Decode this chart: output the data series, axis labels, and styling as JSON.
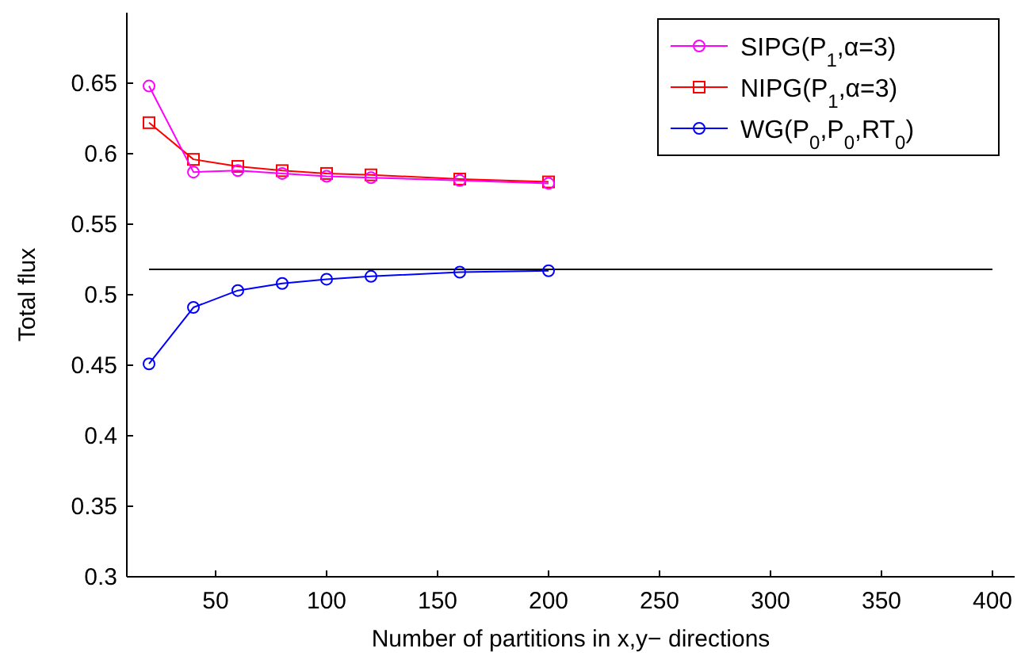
{
  "chart_data": {
    "type": "line",
    "xlabel": "Number of partitions in x,y− directions",
    "ylabel": "Total flux",
    "xlim": [
      10,
      410
    ],
    "ylim": [
      0.3,
      0.7
    ],
    "xticks": [
      50,
      100,
      150,
      200,
      250,
      300,
      350,
      400
    ],
    "yticks": [
      0.3,
      0.35,
      0.4,
      0.45,
      0.5,
      0.55,
      0.6,
      0.65
    ],
    "x": [
      20,
      40,
      60,
      80,
      100,
      120,
      160,
      200
    ],
    "series": [
      {
        "name": "SIPG(P$_{1}$,α=3)",
        "color": "#ff00ff",
        "marker": "circle",
        "values": [
          0.648,
          0.587,
          0.588,
          0.586,
          0.584,
          0.583,
          0.581,
          0.579
        ]
      },
      {
        "name": "NIPG(P$_{1}$,α=3)",
        "color": "#ff0000",
        "marker": "square",
        "values": [
          0.622,
          0.596,
          0.591,
          0.588,
          0.586,
          0.585,
          0.582,
          0.58
        ]
      },
      {
        "name": "WG(P$_{0}$,P$_{0}$,RT$_{0}$)",
        "color": "#0000ff",
        "marker": "circle",
        "values": [
          0.451,
          0.491,
          0.503,
          0.508,
          0.511,
          0.513,
          0.516,
          0.517
        ]
      },
      {
        "color": "#000000",
        "marker": "none",
        "x": [
          20,
          400
        ],
        "values": [
          0.518,
          0.518
        ]
      }
    ],
    "legend": "top right",
    "grid": false
  }
}
